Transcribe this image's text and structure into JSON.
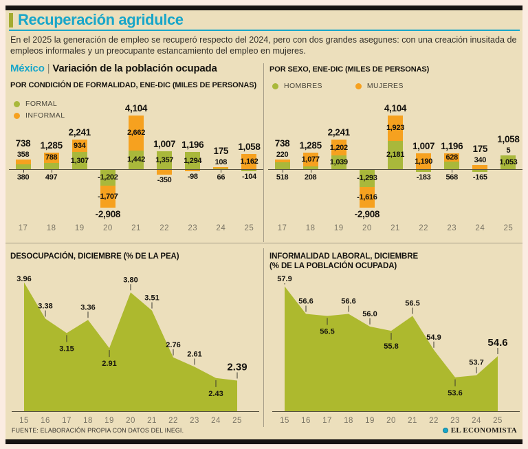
{
  "page": {
    "title": "Recuperación agridulce",
    "intro": "En el 2025 la generación de empleo se recuperó respecto del 2024, pero con dos grandes asegunes: con una creación inusitada de empleos informales y un preocupante estancamiento del empleo en mujeres.",
    "section_label": "México",
    "section_separator": "|",
    "section_title": "Variación de la población ocupada",
    "source": "FUENTE: ELABORACIÓN PROPIA CON DATOS DEL INEGI.",
    "brand": "EL ECONOMISTA"
  },
  "colors": {
    "teal": "#18a6c9",
    "olive_accent": "#a4ab30",
    "bar_green": "#a9b83b",
    "bar_orange": "#f6a11f",
    "area_green": "#adb92e",
    "background": "#ecdfbc"
  },
  "chart_data": [
    {
      "id": "formalidad",
      "type": "bar",
      "stacked": true,
      "title": "POR CONDICIÓN DE FORMALIDAD, ENE-DIC (MILES DE PERSONAS)",
      "categories": [
        "17",
        "18",
        "19",
        "20",
        "21",
        "22",
        "23",
        "24",
        "25"
      ],
      "series": [
        {
          "name": "FORMAL",
          "color_key": "bar_green",
          "values": [
            380,
            497,
            1307,
            -1202,
            1442,
            1357,
            1294,
            66,
            -104
          ]
        },
        {
          "name": "INFORMAL",
          "color_key": "bar_orange",
          "values": [
            358,
            788,
            934,
            -1707,
            2662,
            -350,
            -98,
            108,
            1162
          ]
        }
      ],
      "totals": [
        738,
        1285,
        2241,
        -2908,
        4104,
        1007,
        1196,
        175,
        1058
      ],
      "legend_position": "vertical-left",
      "unit": "miles de personas"
    },
    {
      "id": "sexo",
      "type": "bar",
      "stacked": true,
      "title": "POR SEXO, ENE-DIC (MILES DE PERSONAS)",
      "categories": [
        "17",
        "18",
        "19",
        "20",
        "21",
        "22",
        "23",
        "24",
        "25"
      ],
      "series": [
        {
          "name": "HOMBRES",
          "color_key": "bar_green",
          "values": [
            518,
            208,
            1039,
            -1293,
            2181,
            -183,
            568,
            -165,
            1053
          ]
        },
        {
          "name": "MUJERES",
          "color_key": "bar_orange",
          "values": [
            220,
            1077,
            1202,
            -1616,
            1923,
            1190,
            628,
            340,
            5
          ]
        }
      ],
      "totals": [
        738,
        1285,
        2241,
        -2908,
        4104,
        1007,
        1196,
        175,
        1058
      ],
      "legend_position": "horizontal-top",
      "unit": "miles de personas"
    },
    {
      "id": "desocupacion",
      "type": "area",
      "title": "DESOCUPACIÓN, DICIEMBRE (% DE LA PEA)",
      "x": [
        "15",
        "16",
        "17",
        "18",
        "19",
        "20",
        "21",
        "22",
        "23",
        "24",
        "25"
      ],
      "values": [
        3.96,
        3.38,
        3.15,
        3.36,
        2.91,
        3.8,
        3.51,
        2.76,
        2.61,
        2.43,
        2.39
      ],
      "labels": [
        "3.96",
        "3.38",
        "3.15",
        "3.36",
        "2.91",
        "3.80",
        "3.51",
        "2.76",
        "2.61",
        "2.43",
        "2.39"
      ],
      "label_side": [
        "above",
        "above",
        "below",
        "above",
        "below",
        "above",
        "above",
        "above",
        "above",
        "below",
        "above"
      ],
      "ylim": [
        1.9,
        4.1
      ],
      "grid": false
    },
    {
      "id": "informalidad",
      "type": "area",
      "title_line1": "INFORMALIDAD LABORAL, DICIEMBRE",
      "title_line2": "(% DE LA POBLACIÓN OCUPADA)",
      "x": [
        "15",
        "16",
        "17",
        "18",
        "19",
        "20",
        "21",
        "22",
        "23",
        "24",
        "25"
      ],
      "values": [
        57.9,
        56.6,
        56.5,
        56.6,
        56.0,
        55.8,
        56.5,
        54.9,
        53.6,
        53.7,
        54.6
      ],
      "labels": [
        "57.9",
        "56.6",
        "56.5",
        "56.6",
        "56.0",
        "55.8",
        "56.5",
        "54.9",
        "53.6",
        "53.7",
        "54.6"
      ],
      "label_side": [
        "above",
        "above",
        "below",
        "above",
        "above",
        "below",
        "above",
        "above",
        "below",
        "above",
        "above"
      ],
      "ylim": [
        52.0,
        58.5
      ],
      "grid": false
    }
  ]
}
